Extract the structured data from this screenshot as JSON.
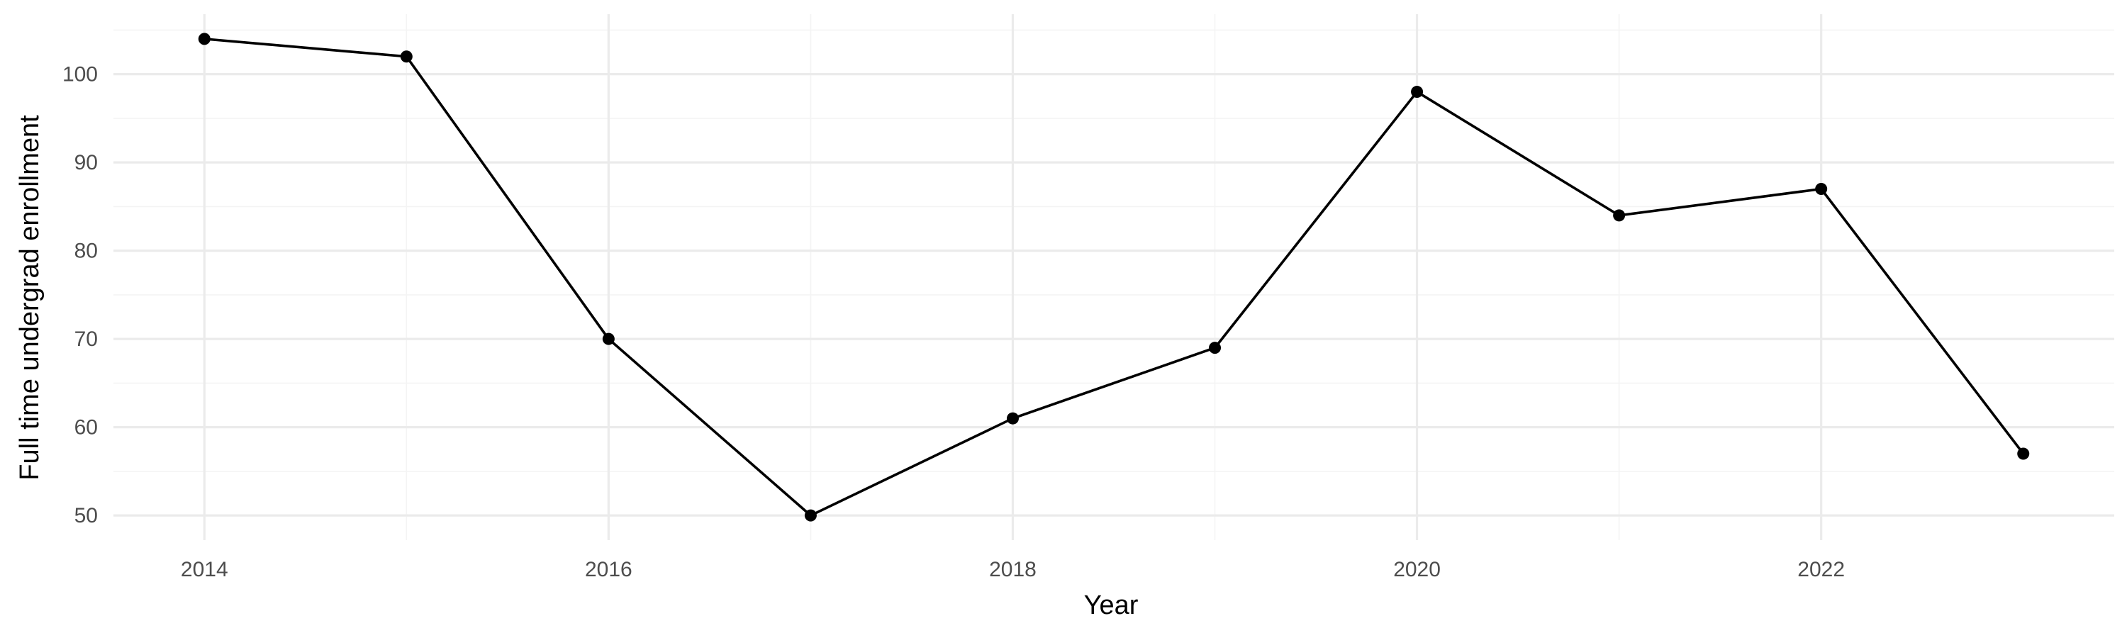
{
  "chart_data": {
    "type": "line",
    "title": "",
    "xlabel": "Year",
    "ylabel": "Full time undergrad enrollment",
    "x": [
      2014,
      2015,
      2016,
      2017,
      2018,
      2019,
      2020,
      2021,
      2022,
      2023
    ],
    "series": [
      {
        "values": [
          104,
          102,
          70,
          50,
          61,
          69,
          98,
          84,
          87,
          57
        ]
      }
    ],
    "xticks": [
      2014,
      2016,
      2018,
      2020,
      2022
    ],
    "xtick_labels": [
      "2014",
      "2016",
      "2018",
      "2020",
      "2022"
    ],
    "yticks": [
      50,
      60,
      70,
      80,
      90,
      100
    ],
    "ytick_labels": [
      "50",
      "60",
      "70",
      "80",
      "90",
      "100"
    ],
    "xlim": [
      2013.55,
      2023.45
    ],
    "ylim": [
      47.2,
      106.8
    ],
    "grid": true,
    "legend": "none",
    "colors": {
      "line": "#000000",
      "point": "#000000",
      "grid": "#ebebeb",
      "tick_text": "#4d4d4d"
    }
  }
}
